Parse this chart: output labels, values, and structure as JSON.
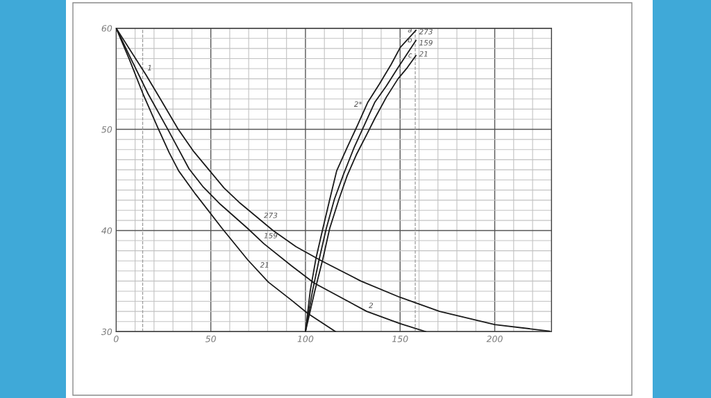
{
  "chart_data": {
    "type": "line",
    "xlim": [
      0,
      230
    ],
    "ylim": [
      30,
      60
    ],
    "xticks": [
      0,
      {
        "value": 10,
        "label": null
      },
      {
        "value": 20,
        "label": null
      },
      {
        "value": 30,
        "label": null
      },
      {
        "value": 40,
        "label": null
      },
      50,
      {
        "value": 60,
        "label": null
      },
      {
        "value": 70,
        "label": null
      },
      {
        "value": 80,
        "label": null
      },
      {
        "value": 90,
        "label": null
      },
      100,
      {
        "value": 110,
        "label": null
      },
      {
        "value": 120,
        "label": null
      },
      {
        "value": 130,
        "label": null
      },
      {
        "value": 140,
        "label": null
      },
      150,
      {
        "value": 160,
        "label": null
      },
      {
        "value": 170,
        "label": null
      },
      {
        "value": 180,
        "label": null
      },
      {
        "value": 190,
        "label": null
      },
      200,
      {
        "value": 210,
        "label": null
      },
      {
        "value": 220,
        "label": null
      },
      {
        "value": 230,
        "label": null
      }
    ],
    "yticks": [
      30,
      {
        "value": 31,
        "label": null
      },
      {
        "value": 32,
        "label": null
      },
      {
        "value": 33,
        "label": null
      },
      {
        "value": 34,
        "label": null
      },
      {
        "value": 35,
        "label": null
      },
      {
        "value": 36,
        "label": null
      },
      {
        "value": 37,
        "label": null
      },
      {
        "value": 38,
        "label": null
      },
      {
        "value": 39,
        "label": null
      },
      40,
      {
        "value": 41,
        "label": null
      },
      {
        "value": 42,
        "label": null
      },
      {
        "value": 43,
        "label": null
      },
      {
        "value": 44,
        "label": null
      },
      {
        "value": 45,
        "label": null
      },
      {
        "value": 46,
        "label": null
      },
      {
        "value": 47,
        "label": null
      },
      {
        "value": 48,
        "label": null
      },
      {
        "value": 49,
        "label": null
      },
      50,
      {
        "value": 51,
        "label": null
      },
      {
        "value": 52,
        "label": null
      },
      {
        "value": 53,
        "label": null
      },
      {
        "value": 54,
        "label": null
      },
      {
        "value": 55,
        "label": null
      },
      {
        "value": 56,
        "label": null
      },
      {
        "value": 57,
        "label": null
      },
      {
        "value": 58,
        "label": null
      },
      {
        "value": 59,
        "label": null
      },
      60
    ],
    "grid": true,
    "line_style": "solid",
    "series": [
      {
        "color": "#1a1a1a",
        "x": [
          0,
          15.7,
          24,
          32.8,
          41,
          49.9,
          57,
          65.5,
          82.9,
          95,
          108.5,
          129.3,
          149.9,
          170.9,
          200,
          229
        ],
        "values": [
          60,
          55.4,
          52.8,
          50,
          47.8,
          45.8,
          44.2,
          42.7,
          40,
          38.4,
          37,
          35,
          33.4,
          32,
          30.7,
          30.05
        ]
      },
      {
        "color": "#1a1a1a",
        "x": [
          0,
          8,
          16.9,
          27.3,
          38.5,
          46,
          55,
          69.5,
          78,
          92.7,
          104.6,
          132.4,
          149.9,
          163.6
        ],
        "values": [
          60,
          56.9,
          53.5,
          50,
          46.1,
          44.3,
          42.6,
          40.2,
          38.7,
          36.5,
          34.8,
          32,
          30.8,
          30
        ]
      },
      {
        "color": "#1a1a1a",
        "x": [
          0,
          7,
          14.4,
          22.4,
          28,
          33,
          41.9,
          56,
          69.5,
          80.4,
          92.7,
          101.2,
          115.9
        ],
        "values": [
          60,
          56.9,
          53.4,
          50,
          47.7,
          45.9,
          43.6,
          40.2,
          37.1,
          34.9,
          33.1,
          31.8,
          30
        ]
      },
      {
        "name": "a",
        "color": "#1a1a1a",
        "x": [
          100,
          102.5,
          105.5,
          109.2,
          113.5,
          116.5,
          122,
          127.5,
          133,
          139.1,
          145.2,
          150.1,
          158.4
        ],
        "values": [
          30,
          34,
          37.2,
          40.2,
          43.6,
          45.9,
          48.2,
          50.4,
          52.7,
          54.5,
          56.4,
          58.1,
          59.8
        ]
      },
      {
        "name": "b",
        "color": "#1a1a1a",
        "x": [
          100,
          103.7,
          107.3,
          111,
          115.3,
          120.2,
          125.7,
          131.8,
          136.7,
          142.8,
          148.9,
          153.8,
          158.4
        ],
        "values": [
          30,
          34,
          37.2,
          40.2,
          43.1,
          45.6,
          48.2,
          50.7,
          52.7,
          54.3,
          56.1,
          57.5,
          58.8
        ]
      },
      {
        "name": "c",
        "color": "#1a1a1a",
        "x": [
          100,
          104.9,
          109.2,
          112.8,
          117.7,
          122,
          126.9,
          132.4,
          136.7,
          142.8,
          148.9,
          153.8,
          158.4
        ],
        "values": [
          30,
          34,
          37.2,
          40.2,
          43.1,
          45.4,
          47.5,
          49.5,
          51.1,
          53.2,
          55,
          56.1,
          57.3
        ]
      }
    ],
    "ref_lines": [
      {
        "axis": "x",
        "value": 14,
        "color": "#9a9a9a",
        "line_style": "dashed"
      },
      {
        "axis": "x",
        "value": 158,
        "color": "#9a9a9a",
        "line_style": "dashed"
      }
    ],
    "annotations": [
      {
        "text": "1",
        "x": 15.5,
        "y": 55.5
      },
      {
        "text": "2*",
        "x": 131,
        "y": 51.9
      },
      {
        "text": "2",
        "x": 132.4,
        "y": 32
      },
      {
        "text": "273",
        "x": 77,
        "y": 40.9
      },
      {
        "text": "159",
        "x": 77,
        "y": 38.9
      },
      {
        "text": "21",
        "x": 75,
        "y": 36.0
      },
      {
        "text": "273",
        "x": 158,
        "y": 59.6
      },
      {
        "text": "159",
        "x": 158,
        "y": 58.5
      },
      {
        "text": "21",
        "x": 158,
        "y": 57.4
      }
    ]
  }
}
